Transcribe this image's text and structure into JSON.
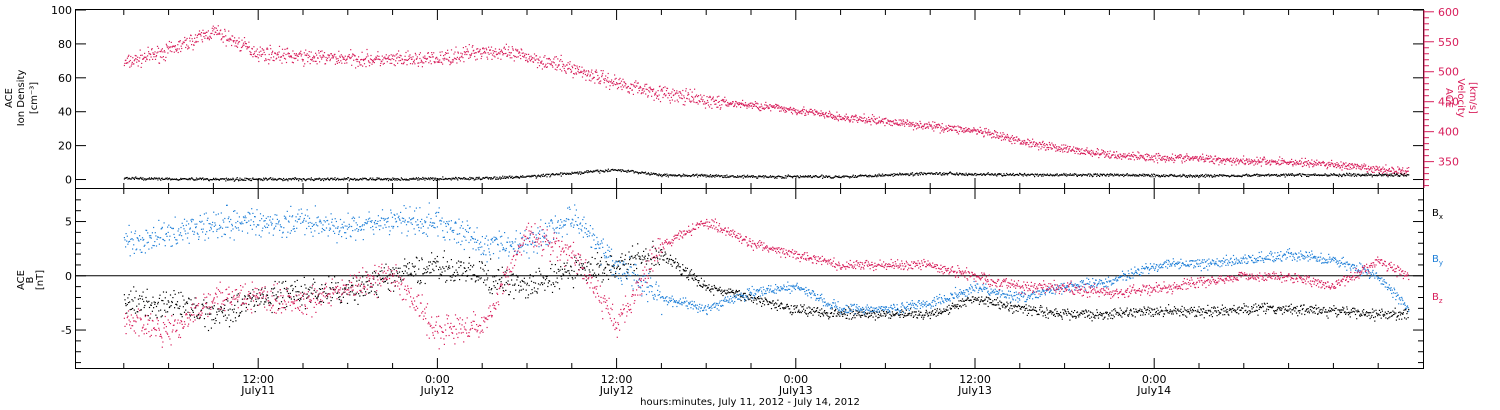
{
  "chart_data": [
    {
      "type": "scatter",
      "panel": "top",
      "ylabel_left": [
        "ACE",
        "Ion Density",
        "[cm⁻³]"
      ],
      "ylabel_right": [
        "ACE",
        "Velocity",
        "[km/s]"
      ],
      "ylim_left": [
        -5,
        100
      ],
      "yticks_left": [
        "0",
        "20",
        "40",
        "60",
        "80",
        "100"
      ],
      "yticks_left_values": [
        0,
        20,
        40,
        60,
        80,
        100
      ],
      "ylim_right": [
        306,
        603
      ],
      "yticks_right": [
        "350",
        "400",
        "450",
        "500",
        "550",
        "600"
      ],
      "yticks_right_values": [
        350,
        400,
        450,
        500,
        550,
        600
      ],
      "series": [
        {
          "axis": "right",
          "color": "#d81e5b",
          "x_hours": [
            0,
            3,
            6,
            9,
            12,
            15,
            18,
            21,
            24,
            27,
            30,
            33,
            36,
            39,
            42,
            45,
            48,
            51,
            54,
            57,
            60,
            63,
            66,
            69,
            72,
            75,
            78,
            81,
            84,
            86
          ],
          "values": [
            515,
            536,
            568,
            532,
            525,
            523,
            520,
            522,
            536,
            526,
            506,
            482,
            465,
            452,
            445,
            437,
            424,
            418,
            410,
            402,
            385,
            372,
            362,
            358,
            356,
            352,
            350,
            346,
            337,
            335
          ]
        },
        {
          "axis": "left",
          "color": "#000000",
          "x_hours": [
            0,
            6,
            12,
            18,
            24,
            27,
            30,
            33,
            36,
            42,
            48,
            54,
            60,
            66,
            72,
            78,
            84,
            86
          ],
          "values": [
            1,
            0.5,
            0.5,
            0.5,
            1,
            2,
            4,
            6,
            3,
            2,
            2,
            4,
            3,
            3,
            2.5,
            3,
            3,
            3
          ]
        }
      ]
    },
    {
      "type": "scatter",
      "panel": "bottom",
      "ylabel": [
        "ACE",
        "B",
        "[nT]"
      ],
      "ylim": [
        -8.5,
        8
      ],
      "yticks": [
        "-5",
        "0",
        "5"
      ],
      "yticks_values": [
        -5,
        0,
        5
      ],
      "series": [
        {
          "name": "Bx",
          "label_main": "B",
          "label_sub": "x",
          "color": "#000000",
          "x_hours": [
            0,
            3,
            6,
            9,
            12,
            15,
            18,
            21,
            24,
            27,
            30,
            33,
            36,
            39,
            42,
            45,
            48,
            51,
            54,
            57,
            60,
            63,
            66,
            69,
            72,
            75,
            78,
            81,
            84,
            86
          ],
          "values": [
            -2.5,
            -2.5,
            -3.5,
            -2,
            -1.5,
            -1.5,
            0,
            1,
            0,
            -1,
            0.5,
            1,
            2,
            -1,
            -2,
            -3,
            -3.5,
            -3.5,
            -3.5,
            -2,
            -3,
            -3.5,
            -3.5,
            -3.2,
            -3.3,
            -3.0,
            -3.0,
            -3.2,
            -3.5,
            -3.5
          ]
        },
        {
          "name": "By",
          "label_main": "B",
          "label_sub": "y",
          "color": "#1e7fd8",
          "x_hours": [
            0,
            3,
            6,
            9,
            12,
            15,
            18,
            21,
            24,
            27,
            30,
            33,
            36,
            39,
            42,
            45,
            48,
            51,
            54,
            57,
            60,
            63,
            66,
            69,
            72,
            75,
            78,
            81,
            84,
            86
          ],
          "values": [
            3,
            4,
            5,
            5,
            5,
            4.5,
            5,
            5,
            3,
            3,
            5.5,
            1,
            -2,
            -3,
            -1.5,
            -1,
            -3,
            -3,
            -2.5,
            -1,
            -2,
            -1,
            -0.5,
            1,
            1.2,
            1.5,
            2,
            1.5,
            0,
            -3
          ]
        },
        {
          "name": "Bz",
          "label_main": "B",
          "label_sub": "z",
          "color": "#d81e5b",
          "x_hours": [
            0,
            3,
            6,
            9,
            12,
            15,
            18,
            21,
            24,
            27,
            30,
            33,
            36,
            39,
            42,
            45,
            48,
            51,
            54,
            57,
            60,
            63,
            66,
            69,
            72,
            75,
            78,
            81,
            84,
            86
          ],
          "values": [
            -4,
            -5,
            -2,
            -2,
            -2.5,
            -1,
            0,
            -5,
            -4.5,
            4,
            2,
            -4.5,
            3,
            5,
            3,
            2,
            1,
            1,
            1,
            0,
            -1,
            -1,
            -1.5,
            -1.2,
            -0.5,
            0,
            0,
            -1,
            1.5,
            0
          ]
        }
      ]
    }
  ],
  "x_axis": {
    "xlim_hours": [
      -3.2,
      87
    ],
    "major_ticks": [
      {
        "hours": 9,
        "time": "12:00",
        "date": "July11"
      },
      {
        "hours": 21,
        "time": "0:00",
        "date": "July12"
      },
      {
        "hours": 33,
        "time": "12:00",
        "date": "July12"
      },
      {
        "hours": 45,
        "time": "0:00",
        "date": "July13"
      },
      {
        "hours": 57,
        "time": "12:00",
        "date": "July13"
      },
      {
        "hours": 69,
        "time": "0:00",
        "date": "July14"
      }
    ],
    "xlabel": "hours:minutes, July 11, 2012 - July 14, 2012"
  },
  "colors": {
    "density": "#000000",
    "velocity": "#d81e5b",
    "bx": "#000000",
    "by": "#1e7fd8",
    "bz": "#d81e5b",
    "frame": "#000000"
  }
}
